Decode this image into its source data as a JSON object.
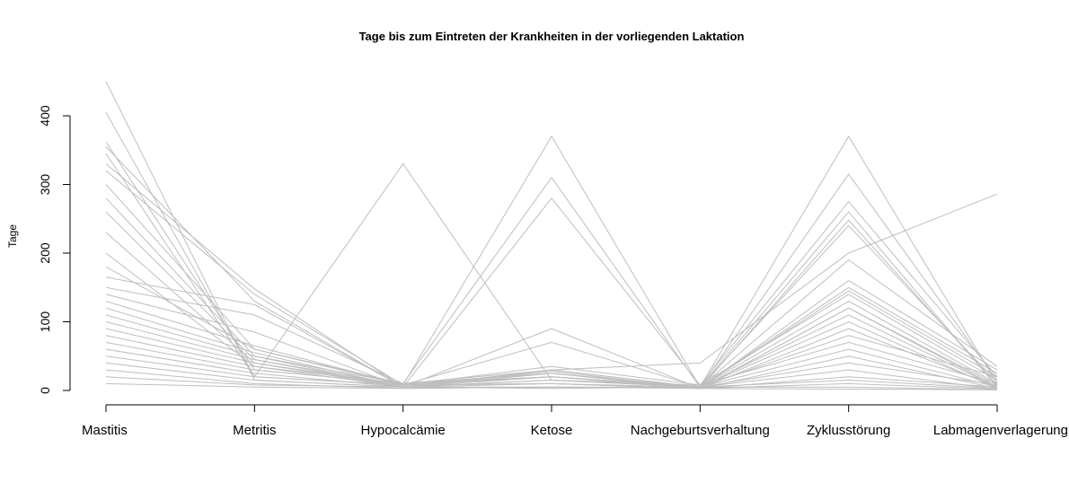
{
  "chart_data": {
    "type": "line",
    "title": "Tage bis zum Eintreten der Krankheiten in der vorliegenden Laktation",
    "ylabel": "Tage",
    "xlabel": "",
    "categories": [
      "Mastitis",
      "Metritis",
      "Hypocalcämie",
      "Ketose",
      "Nachgeburtsverhaltung",
      "Zyklusstörung",
      "Labmagenverlagerung"
    ],
    "ylim": [
      0,
      450
    ],
    "yticks": [
      0,
      100,
      200,
      300,
      400
    ],
    "ytick_labels": [
      "0",
      "100",
      "200",
      "300",
      "400"
    ],
    "line_color": "#bebebe",
    "grid": false,
    "series": [
      {
        "values": [
          450,
          15,
          5,
          10,
          3,
          120,
          5
        ]
      },
      {
        "values": [
          405,
          20,
          8,
          370,
          5,
          370,
          10
        ]
      },
      {
        "values": [
          362,
          30,
          10,
          310,
          5,
          315,
          15
        ]
      },
      {
        "values": [
          355,
          130,
          5,
          280,
          8,
          275,
          20
        ]
      },
      {
        "values": [
          345,
          20,
          330,
          15,
          5,
          260,
          5
        ]
      },
      {
        "values": [
          330,
          148,
          5,
          90,
          3,
          248,
          8
        ]
      },
      {
        "values": [
          320,
          140,
          8,
          70,
          5,
          240,
          12
        ]
      },
      {
        "values": [
          300,
          60,
          10,
          30,
          40,
          200,
          286
        ]
      },
      {
        "values": [
          280,
          50,
          5,
          25,
          5,
          190,
          35
        ]
      },
      {
        "values": [
          260,
          45,
          8,
          20,
          3,
          160,
          30
        ]
      },
      {
        "values": [
          230,
          40,
          5,
          20,
          5,
          150,
          25
        ]
      },
      {
        "values": [
          200,
          35,
          10,
          25,
          5,
          145,
          20
        ]
      },
      {
        "values": [
          180,
          60,
          8,
          35,
          8,
          140,
          15
        ]
      },
      {
        "values": [
          165,
          125,
          5,
          30,
          5,
          130,
          10
        ]
      },
      {
        "values": [
          150,
          110,
          10,
          25,
          3,
          120,
          8
        ]
      },
      {
        "values": [
          140,
          85,
          5,
          30,
          5,
          110,
          5
        ]
      },
      {
        "values": [
          130,
          65,
          8,
          20,
          5,
          100,
          3
        ]
      },
      {
        "values": [
          120,
          55,
          5,
          28,
          3,
          90,
          5
        ]
      },
      {
        "values": [
          110,
          50,
          10,
          20,
          5,
          80,
          20
        ]
      },
      {
        "values": [
          100,
          45,
          5,
          15,
          8,
          70,
          10
        ]
      },
      {
        "values": [
          90,
          40,
          8,
          10,
          5,
          60,
          5
        ]
      },
      {
        "values": [
          80,
          35,
          5,
          25,
          3,
          50,
          3
        ]
      },
      {
        "values": [
          70,
          30,
          10,
          20,
          5,
          40,
          8
        ]
      },
      {
        "values": [
          60,
          25,
          5,
          15,
          5,
          30,
          2
        ]
      },
      {
        "values": [
          50,
          20,
          8,
          10,
          3,
          20,
          5
        ]
      },
      {
        "values": [
          40,
          15,
          5,
          5,
          5,
          15,
          3
        ]
      },
      {
        "values": [
          30,
          10,
          3,
          5,
          3,
          10,
          2
        ]
      },
      {
        "values": [
          20,
          8,
          5,
          3,
          5,
          5,
          1
        ]
      },
      {
        "values": [
          10,
          5,
          3,
          5,
          3,
          2,
          1
        ]
      }
    ]
  }
}
